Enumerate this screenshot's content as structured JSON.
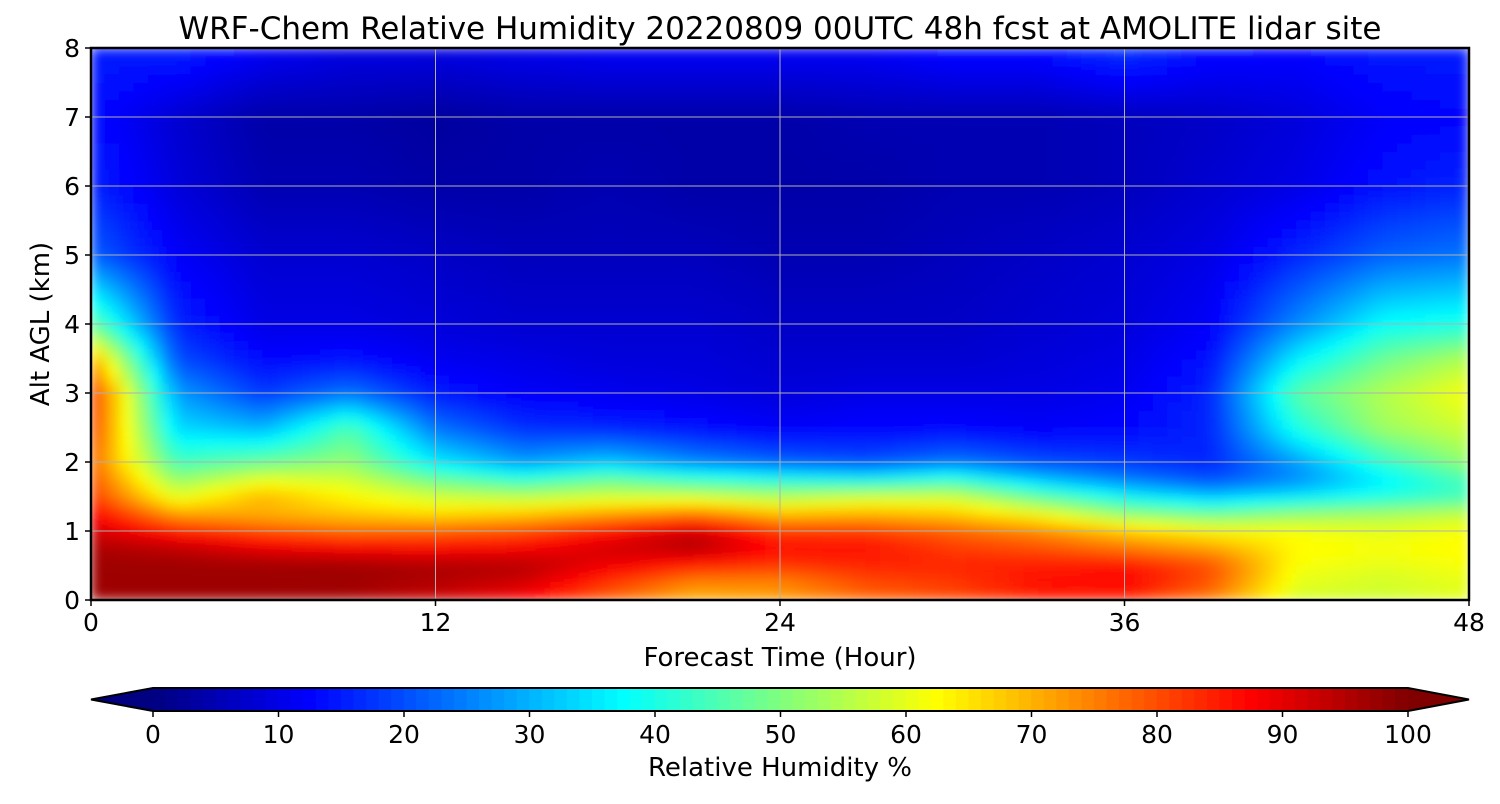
{
  "chart_data": {
    "type": "heatmap",
    "title": "WRF-Chem Relative Humidity 20220809 00UTC 48h fcst at AMOLITE lidar site",
    "xlabel": "Forecast Time (Hour)",
    "ylabel": "Alt AGL (km)",
    "xlim": [
      0,
      48
    ],
    "ylim": [
      0,
      8
    ],
    "xticks": [
      0,
      12,
      24,
      36,
      48
    ],
    "xtick_labels": [
      "0",
      "12",
      "24",
      "36",
      "48"
    ],
    "yticks": [
      0,
      1,
      2,
      3,
      4,
      5,
      6,
      7,
      8
    ],
    "ytick_labels": [
      "0",
      "1",
      "2",
      "3",
      "4",
      "5",
      "6",
      "7",
      "8"
    ],
    "grid": true,
    "colormap": "jet",
    "colorbar": {
      "label": "Relative Humidity %",
      "range": [
        0,
        100
      ],
      "extend": "both",
      "ticks": [
        0,
        10,
        20,
        30,
        40,
        50,
        60,
        70,
        80,
        90,
        100
      ],
      "tick_labels": [
        "0",
        "10",
        "20",
        "30",
        "40",
        "50",
        "60",
        "70",
        "80",
        "90",
        "100"
      ]
    },
    "x": [
      0,
      3,
      6,
      9,
      12,
      15,
      18,
      21,
      24,
      27,
      30,
      33,
      36,
      39,
      42,
      45,
      48
    ],
    "y": [
      0,
      0.25,
      0.5,
      0.75,
      1,
      1.25,
      1.5,
      1.75,
      2,
      2.5,
      3,
      3.5,
      4,
      5,
      6,
      7,
      8
    ],
    "z": [
      [
        97,
        97,
        97,
        96,
        92,
        87,
        78,
        70,
        72,
        77,
        80,
        84,
        83,
        75,
        58,
        58,
        60
      ],
      [
        97,
        97,
        97,
        97,
        95,
        92,
        82,
        74,
        74,
        80,
        82,
        86,
        88,
        79,
        60,
        58,
        60
      ],
      [
        97,
        97,
        97,
        97,
        96,
        95,
        89,
        84,
        82,
        84,
        84,
        85,
        86,
        80,
        62,
        60,
        62
      ],
      [
        96,
        94,
        90,
        88,
        87,
        88,
        92,
        95,
        87,
        86,
        82,
        80,
        76,
        72,
        63,
        62,
        63
      ],
      [
        92,
        85,
        80,
        77,
        78,
        80,
        86,
        93,
        82,
        82,
        78,
        74,
        68,
        63,
        62,
        60,
        62
      ],
      [
        88,
        72,
        70,
        68,
        66,
        68,
        72,
        76,
        69,
        70,
        68,
        62,
        52,
        48,
        52,
        54,
        57
      ],
      [
        82,
        60,
        70,
        63,
        58,
        56,
        58,
        58,
        55,
        58,
        58,
        47,
        38,
        32,
        36,
        40,
        44
      ],
      [
        80,
        52,
        60,
        58,
        48,
        42,
        48,
        43,
        40,
        38,
        42,
        32,
        25,
        20,
        26,
        36,
        45
      ],
      [
        78,
        44,
        48,
        52,
        36,
        28,
        32,
        26,
        22,
        20,
        24,
        20,
        18,
        16,
        28,
        42,
        52
      ],
      [
        82,
        34,
        30,
        45,
        24,
        17,
        16,
        14,
        12,
        13,
        13,
        12,
        13,
        16,
        40,
        53,
        58
      ],
      [
        84,
        28,
        18,
        24,
        15,
        12,
        11,
        10,
        9,
        10,
        10,
        10,
        11,
        16,
        46,
        55,
        62
      ],
      [
        72,
        20,
        13,
        14,
        11,
        10,
        9,
        9,
        8,
        8,
        8,
        9,
        10,
        14,
        36,
        48,
        55
      ],
      [
        48,
        16,
        10,
        10,
        9,
        8,
        8,
        8,
        7,
        7,
        7,
        8,
        9,
        12,
        26,
        38,
        40
      ],
      [
        22,
        12,
        8,
        8,
        7,
        6,
        6,
        6,
        5,
        5,
        6,
        7,
        8,
        10,
        16,
        22,
        24
      ],
      [
        16,
        9,
        5,
        5,
        4,
        4,
        5,
        4,
        4,
        4,
        5,
        5,
        6,
        8,
        10,
        14,
        16
      ],
      [
        14,
        8,
        4,
        4,
        3,
        4,
        4,
        4,
        4,
        5,
        5,
        5,
        6,
        7,
        9,
        12,
        13
      ],
      [
        15,
        16,
        12,
        10,
        10,
        11,
        12,
        12,
        12,
        12,
        14,
        14,
        18,
        14,
        13,
        15,
        15
      ]
    ]
  }
}
